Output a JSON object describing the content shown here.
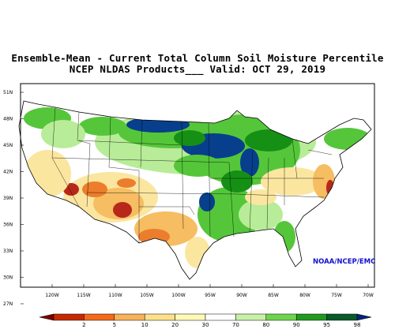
{
  "title_line1": "Ensemble-Mean - Current Total Column Soil Moisture Percentile",
  "title_line2": "NCEP NLDAS Products___ Valid: OCT 29, 2019",
  "credit": "NOAA/NCEP/EMC",
  "lat_labels": [
    "51N",
    "48N",
    "45N",
    "42N",
    "39N",
    "36N",
    "33N",
    "30N",
    "27N"
  ],
  "lon_labels": [
    "120W",
    "115W",
    "110W",
    "105W",
    "100W",
    "95W",
    "90W",
    "85W",
    "80W",
    "75W",
    "70W"
  ],
  "legend": {
    "labels": [
      "2",
      "5",
      "10",
      "20",
      "30",
      "70",
      "80",
      "90",
      "95",
      "98"
    ],
    "colors": [
      "#7a0000",
      "#c62a00",
      "#f26a1a",
      "#f7b25a",
      "#fde08a",
      "#fff9b8",
      "#ffffff",
      "#c8f0a8",
      "#6fd44c",
      "#1f9a1f",
      "#0a5a2a",
      "#06237a"
    ]
  },
  "colors": {
    "land_normal": "#ffffff",
    "wet_light": "#b8ec98",
    "wet_mid": "#55c63a",
    "wet_dark": "#159015",
    "wet_very": "#073f8c",
    "dry_light": "#fbe6a0",
    "dry_mid": "#f6bd62",
    "dry_strong": "#ec7d2c",
    "dry_extreme": "#b8281a"
  }
}
